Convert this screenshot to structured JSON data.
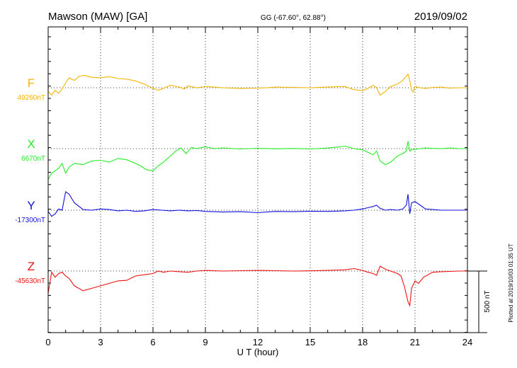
{
  "chart_data": {
    "type": "line",
    "title": "Mawson (MAW)  [GA]",
    "coords": "GG (-67.60°,  62.88°)",
    "date": "2019/09/02",
    "xlabel": "U T (hour)",
    "xlim": [
      0,
      24
    ],
    "xticks": [
      "0",
      "3",
      "6",
      "9",
      "12",
      "15",
      "18",
      "21",
      "24"
    ],
    "scale_label": "500 nT",
    "plotted_note": "Plotted at 2019/10/03 01:35 UT",
    "grid": true,
    "series": [
      {
        "name": "F",
        "baseline": "49260nT",
        "color": "#f5b400",
        "x": [
          0,
          0.2,
          0.4,
          0.6,
          0.8,
          1.0,
          1.2,
          1.5,
          1.8,
          2.1,
          2.5,
          3.0,
          3.5,
          4.0,
          4.5,
          5.0,
          5.5,
          6.0,
          6.3,
          6.6,
          7.0,
          7.5,
          7.8,
          8.0,
          8.5,
          9.0,
          9.5,
          10,
          11,
          12,
          12.5,
          13,
          14,
          15,
          16,
          16.5,
          17,
          17.5,
          18,
          18.3,
          18.6,
          18.8,
          19.0,
          19.3,
          19.6,
          20.0,
          20.3,
          20.5,
          20.6,
          20.7,
          20.8,
          20.9,
          21.0,
          21.3,
          21.6,
          22,
          22.5,
          23,
          23.5,
          24
        ],
        "y": [
          -30,
          -60,
          -20,
          -45,
          -10,
          40,
          80,
          60,
          95,
          100,
          85,
          80,
          90,
          75,
          70,
          55,
          30,
          -5,
          -20,
          -5,
          20,
          5,
          -10,
          15,
          0,
          10,
          5,
          0,
          -5,
          -3,
          0,
          5,
          3,
          0,
          5,
          8,
          10,
          -15,
          -25,
          -5,
          20,
          0,
          -60,
          -30,
          10,
          30,
          60,
          95,
          110,
          60,
          -20,
          -35,
          10,
          0,
          -5,
          3,
          5,
          -3,
          0,
          0
        ]
      },
      {
        "name": "X",
        "baseline": "6670nT",
        "color": "#22ee22",
        "x": [
          0,
          0.2,
          0.4,
          0.6,
          0.8,
          1.0,
          1.2,
          1.5,
          2.0,
          2.5,
          3.0,
          3.5,
          4.0,
          4.5,
          5.0,
          5.3,
          5.6,
          6.0,
          6.3,
          6.6,
          7.0,
          7.3,
          7.6,
          7.9,
          8.2,
          8.5,
          9.0,
          9.5,
          10,
          11,
          12,
          13,
          14,
          15,
          16,
          16.5,
          17,
          17.5,
          18,
          18.3,
          18.6,
          18.8,
          19,
          19.3,
          19.6,
          20,
          20.3,
          20.5,
          20.6,
          20.7,
          20.8,
          21,
          21.3,
          21.6,
          22,
          22.5,
          23,
          23.5,
          24
        ],
        "y": [
          -250,
          -200,
          -180,
          -160,
          -120,
          -200,
          -150,
          -120,
          -130,
          -100,
          -95,
          -110,
          -80,
          -90,
          -120,
          -140,
          -170,
          -180,
          -140,
          -110,
          -60,
          -20,
          5,
          -40,
          10,
          0,
          15,
          0,
          5,
          -3,
          3,
          -2,
          2,
          -3,
          5,
          12,
          20,
          0,
          -10,
          -30,
          -50,
          -20,
          -100,
          -130,
          -110,
          -60,
          -40,
          -20,
          60,
          -20,
          -10,
          -5,
          0,
          5,
          2,
          0,
          5,
          0,
          0
        ]
      },
      {
        "name": "Y",
        "baseline": "-17300nT",
        "color": "#1010dd",
        "x": [
          0,
          0.2,
          0.4,
          0.6,
          0.8,
          1.0,
          1.2,
          1.5,
          2.0,
          2.5,
          3.0,
          3.5,
          4.0,
          4.5,
          5.0,
          5.5,
          6.0,
          6.5,
          7.0,
          7.5,
          8.0,
          8.5,
          9.0,
          10,
          11,
          12,
          13,
          14,
          15,
          16,
          17,
          17.5,
          18,
          18.3,
          18.6,
          18.8,
          19,
          19.3,
          19.6,
          20,
          20.3,
          20.5,
          20.6,
          20.7,
          20.8,
          21,
          21.3,
          21.6,
          22,
          22.5,
          23,
          23.5,
          24
        ],
        "y": [
          -10,
          -50,
          -30,
          10,
          0,
          150,
          130,
          60,
          5,
          0,
          10,
          5,
          -5,
          0,
          -10,
          -5,
          5,
          0,
          -5,
          0,
          -5,
          -3,
          -10,
          -15,
          -12,
          -20,
          -10,
          -12,
          -8,
          -10,
          -5,
          0,
          10,
          20,
          30,
          40,
          15,
          0,
          5,
          0,
          10,
          40,
          130,
          -30,
          60,
          70,
          40,
          10,
          5,
          0,
          0,
          0,
          0
        ]
      },
      {
        "name": "Z",
        "baseline": "-45630nT",
        "color": "#ee1111",
        "x": [
          0,
          0.2,
          0.4,
          0.6,
          0.8,
          1.0,
          1.2,
          1.5,
          2.0,
          2.5,
          3.0,
          3.5,
          4.0,
          4.5,
          5.0,
          5.5,
          6.0,
          6.3,
          6.6,
          7.0,
          7.5,
          8.0,
          8.5,
          9.0,
          10,
          11,
          12,
          13,
          14,
          15,
          16,
          17,
          17.5,
          18,
          18.3,
          18.6,
          18.8,
          19,
          19.3,
          19.6,
          20,
          20.2,
          20.4,
          20.6,
          20.7,
          20.8,
          21,
          21.2,
          21.5,
          22,
          22.5,
          23,
          23.5,
          24
        ],
        "y": [
          -180,
          -10,
          -50,
          -20,
          -10,
          -40,
          -60,
          -120,
          -160,
          -140,
          -120,
          -100,
          -80,
          -75,
          -40,
          -30,
          -20,
          0,
          -10,
          0,
          -5,
          -10,
          0,
          5,
          0,
          3,
          5,
          3,
          0,
          2,
          5,
          10,
          20,
          5,
          -10,
          -20,
          -35,
          40,
          15,
          0,
          -20,
          -40,
          -130,
          -250,
          -280,
          -140,
          -80,
          -100,
          -50,
          -10,
          -5,
          -3,
          0,
          0
        ]
      }
    ]
  }
}
